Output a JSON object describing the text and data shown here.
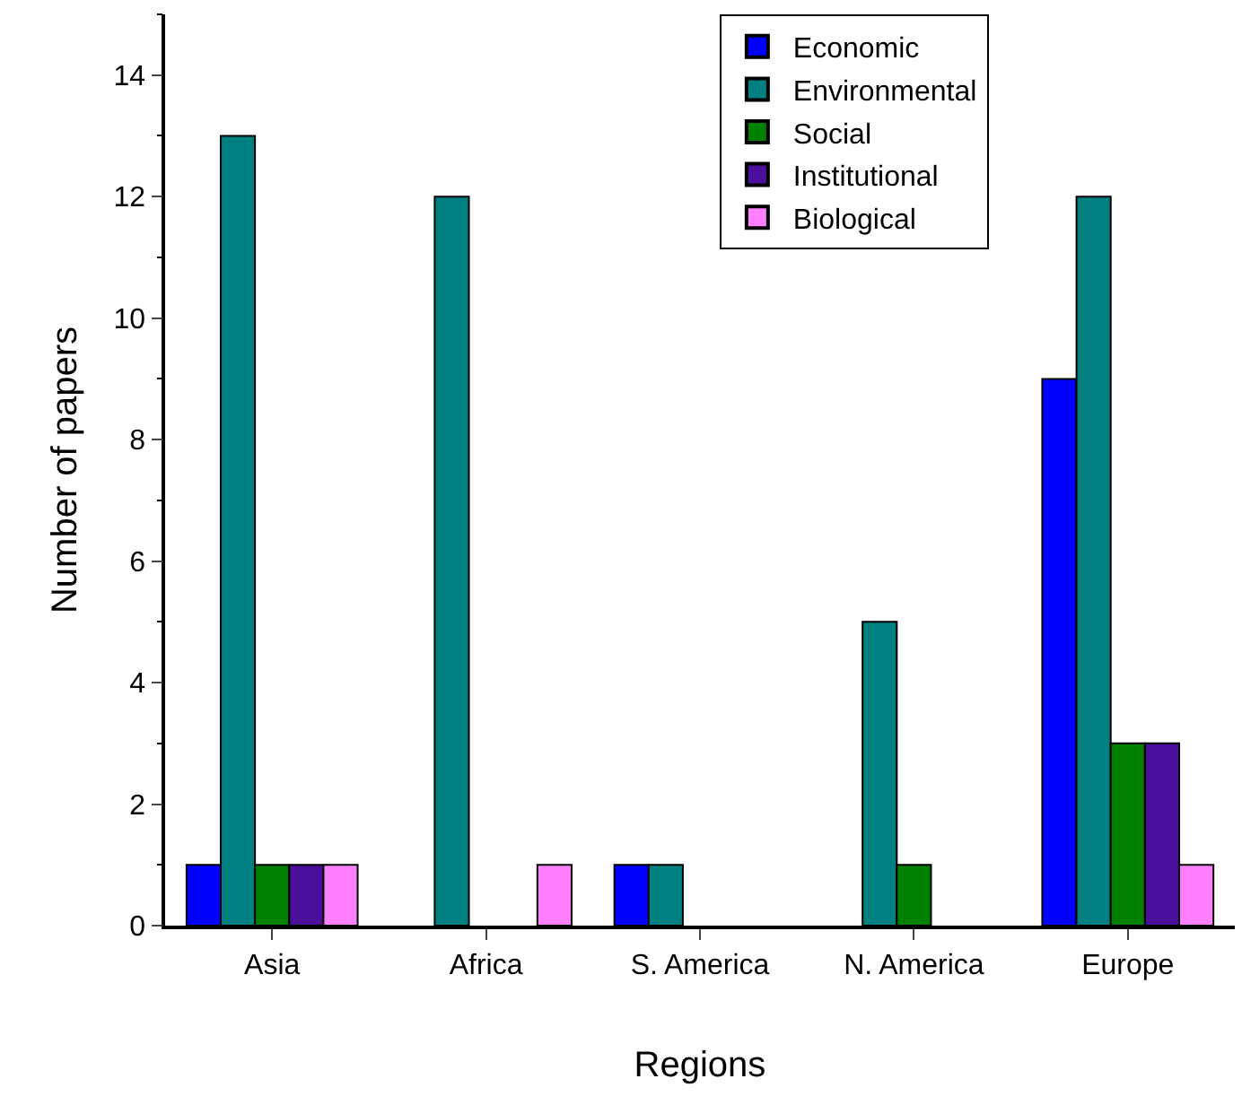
{
  "chart_data": {
    "type": "bar",
    "xlabel": "Regions",
    "ylabel": "Number of papers",
    "categories": [
      "Asia",
      "Africa",
      "S. America",
      "N. America",
      "Europe"
    ],
    "series": [
      {
        "name": "Economic",
        "color": "#0000ff",
        "values": [
          1,
          0,
          1,
          0,
          9
        ]
      },
      {
        "name": "Environmental",
        "color": "#008080",
        "values": [
          13,
          12,
          1,
          5,
          12
        ]
      },
      {
        "name": "Social",
        "color": "#008000",
        "values": [
          1,
          0,
          0,
          1,
          3
        ]
      },
      {
        "name": "Institutional",
        "color": "#4b0f9b",
        "values": [
          1,
          0,
          0,
          0,
          3
        ]
      },
      {
        "name": "Biological",
        "color": "#ff80ff",
        "values": [
          1,
          1,
          0,
          0,
          1
        ]
      }
    ],
    "ylim": [
      0,
      15
    ],
    "yticks": [
      0,
      2,
      4,
      6,
      8,
      10,
      12,
      14
    ],
    "legend": "top right"
  }
}
